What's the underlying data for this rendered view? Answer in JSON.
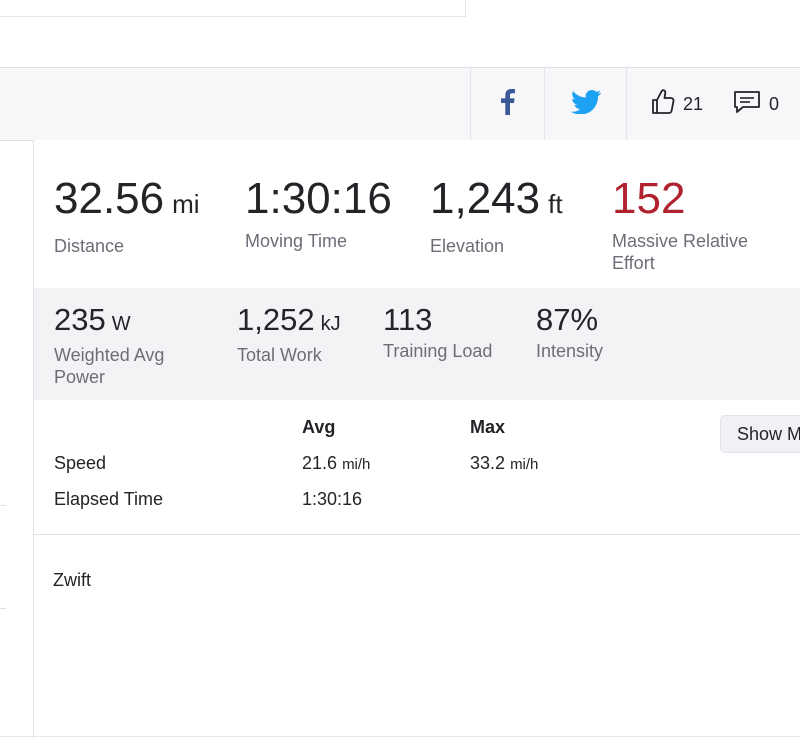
{
  "actions": {
    "kudos_count": "21",
    "comments_count": "0"
  },
  "stats": {
    "distance": {
      "value": "32.56",
      "unit": "mi",
      "label": "Distance"
    },
    "moving_time": {
      "value": "1:30:16",
      "label": "Moving Time"
    },
    "elevation": {
      "value": "1,243",
      "unit": "ft",
      "label": "Elevation"
    },
    "relative_effort": {
      "value": "152",
      "label": "Massive Relative Effort"
    }
  },
  "secondary_stats": {
    "weighted_power": {
      "value": "235",
      "unit": "W",
      "label": "Weighted Avg Power"
    },
    "total_work": {
      "value": "1,252",
      "unit": "kJ",
      "label": "Total Work"
    },
    "training_load": {
      "value": "113",
      "label": "Training Load"
    },
    "intensity": {
      "value": "87%",
      "label": "Intensity"
    }
  },
  "more_stats": {
    "col_avg": "Avg",
    "col_max": "Max",
    "show_more_label": "Show More",
    "rows": [
      {
        "label": "Speed",
        "avg": "21.6",
        "avg_unit": "mi/h",
        "max": "33.2",
        "max_unit": "mi/h"
      },
      {
        "label": "Elapsed Time",
        "avg": "1:30:16"
      }
    ]
  },
  "device": "Zwift",
  "colors": {
    "facebook": "#3b5998",
    "twitter": "#1da1f2",
    "relative_effort": "#b0222e",
    "secondary_bg": "#f3f3f6",
    "bar_bg": "#f7f7fa"
  }
}
